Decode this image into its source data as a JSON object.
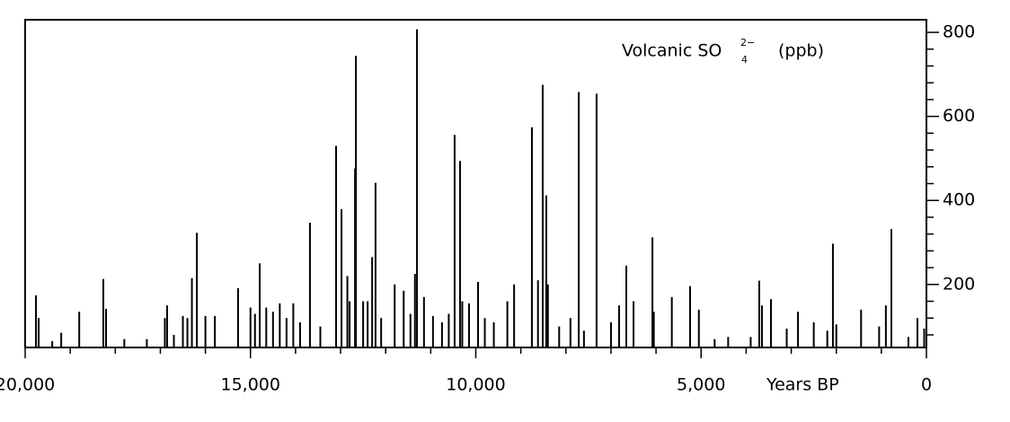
{
  "chart_data": {
    "type": "bar",
    "title": "Volcanic SO",
    "title_subscript": "4",
    "title_superscript": "2−",
    "title_unit": "(ppb)",
    "x_label": "Years BP",
    "color": "#000000",
    "xlim": [
      20000,
      0
    ],
    "xticks": [
      {
        "value": 20000,
        "label": "20,000"
      },
      {
        "value": 15000,
        "label": "15,000"
      },
      {
        "value": 10000,
        "label": "10,000"
      },
      {
        "value": 5000,
        "label": "5,000"
      },
      0
    ],
    "xminorticks": [
      19000,
      18000,
      17000,
      16000,
      14000,
      13000,
      12000,
      11000,
      9000,
      8000,
      7000,
      6000,
      4000,
      3000,
      2000,
      1000
    ],
    "ylim": [
      50,
      830
    ],
    "yticks": [
      200,
      400,
      600,
      800
    ],
    "yminorticks": [
      80,
      120,
      160,
      240,
      280,
      320,
      360,
      440,
      480,
      520,
      560,
      640,
      680,
      720,
      760
    ],
    "x": [
      19760,
      19700,
      19400,
      19200,
      18800,
      18265,
      18205,
      17800,
      17300,
      16900,
      16850,
      16700,
      16500,
      16400,
      16300,
      16190,
      16000,
      15790,
      15275,
      15000,
      14900,
      14795,
      14650,
      14500,
      14350,
      14200,
      14050,
      13900,
      13680,
      13450,
      13100,
      12980,
      12850,
      12800,
      12680,
      12660,
      12500,
      12400,
      12300,
      12225,
      12100,
      11800,
      11600,
      11450,
      11350,
      11305,
      11150,
      10950,
      10750,
      10600,
      10470,
      10350,
      10300,
      10150,
      9950,
      9800,
      9600,
      9300,
      9150,
      8755,
      8620,
      8515,
      8435,
      8400,
      8150,
      7900,
      7715,
      7600,
      7320,
      7000,
      6820,
      6660,
      6500,
      6080,
      6050,
      5650,
      5245,
      5050,
      4700,
      4400,
      3900,
      3710,
      3650,
      3450,
      3100,
      2850,
      2500,
      2200,
      2075,
      2000,
      1450,
      1050,
      900,
      778,
      400,
      200,
      50
    ],
    "values": [
      174,
      120,
      65,
      85,
      135,
      213,
      142,
      70,
      70,
      120,
      150,
      80,
      125,
      120,
      215,
      323,
      125,
      125,
      191,
      145,
      130,
      250,
      145,
      135,
      155,
      120,
      155,
      110,
      347,
      100,
      530,
      379,
      220,
      160,
      476,
      744,
      160,
      160,
      265,
      442,
      120,
      200,
      185,
      130,
      225,
      807,
      170,
      125,
      110,
      130,
      556,
      494,
      160,
      155,
      206,
      120,
      110,
      160,
      200,
      574,
      210,
      675,
      412,
      200,
      100,
      120,
      658,
      90,
      654,
      110,
      150,
      245,
      160,
      312,
      135,
      170,
      196,
      140,
      70,
      75,
      75,
      209,
      150,
      165,
      95,
      135,
      110,
      90,
      297,
      105,
      140,
      100,
      150,
      332,
      75,
      120,
      95
    ]
  }
}
